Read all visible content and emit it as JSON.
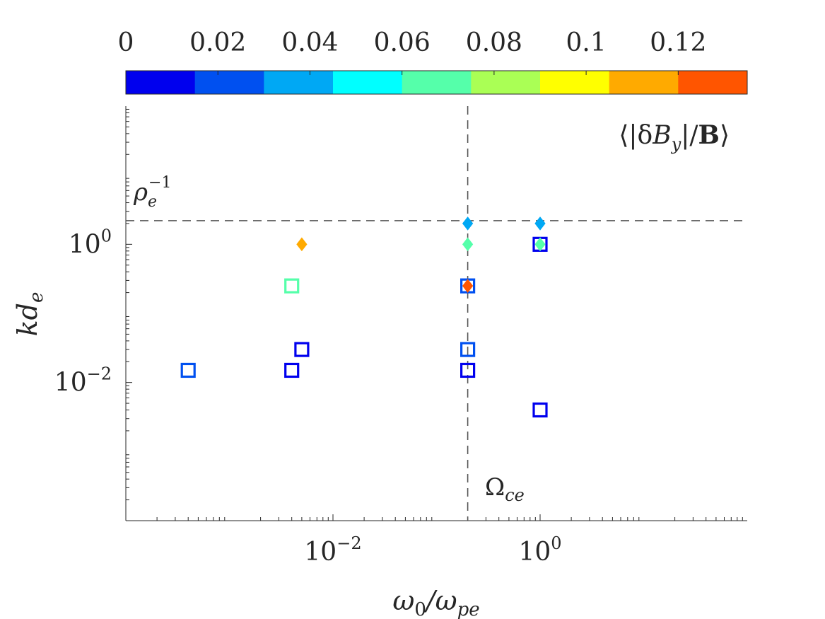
{
  "chart_data": {
    "type": "scatter",
    "title": "",
    "xlabel": {
      "main": "ω",
      "sub1": "0",
      "slash": "/ω",
      "sub2": "pe"
    },
    "ylabel": {
      "main": "kd",
      "sub": "e"
    },
    "xscale": "log",
    "yscale": "log",
    "xlim": [
      0.0001,
      100
    ],
    "ylim": [
      0.0001,
      100
    ],
    "x_ticks": [
      {
        "value": 0.01,
        "base": "10",
        "exp": "−2"
      },
      {
        "value": 1,
        "base": "10",
        "exp": "0"
      }
    ],
    "y_ticks": [
      {
        "value": 0.01,
        "base": "10",
        "exp": "−2"
      },
      {
        "value": 1,
        "base": "10",
        "exp": "0"
      }
    ],
    "reference_lines": [
      {
        "orientation": "vertical",
        "x": 0.2,
        "label_main": "Ω",
        "label_sub": "ce"
      },
      {
        "orientation": "horizontal",
        "y": 2.2,
        "label_main": "ρ",
        "label_sub": "e",
        "label_sup": "−1"
      }
    ],
    "colorbar": {
      "position": "top",
      "label": {
        "open": "⟨|δ",
        "B": "B",
        "sub": "y",
        "mid": "|/",
        "bold": "B",
        "close": "⟩"
      },
      "range": [
        0,
        0.135
      ],
      "tick_values": [
        0,
        0.02,
        0.04,
        0.06,
        0.08,
        0.1,
        0.12
      ],
      "tick_labels": [
        "0",
        "0.02",
        "0.04",
        "0.06",
        "0.08",
        "0.1",
        "0.12"
      ],
      "colors": [
        "#0000ee",
        "#0050f0",
        "#00a8f4",
        "#00ffff",
        "#55ffaa",
        "#aaff55",
        "#ffff00",
        "#ffaa00",
        "#ff5500"
      ]
    },
    "series": [
      {
        "name": "open squares",
        "marker": "square-open",
        "points": [
          {
            "x": 0.0004,
            "y": 0.015,
            "value": 0.025
          },
          {
            "x": 0.004,
            "y": 0.015,
            "value": 0.005
          },
          {
            "x": 0.005,
            "y": 0.03,
            "value": 0.01
          },
          {
            "x": 0.004,
            "y": 0.25,
            "value": 0.065
          },
          {
            "x": 0.2,
            "y": 0.015,
            "value": 0.01
          },
          {
            "x": 0.2,
            "y": 0.03,
            "value": 0.025
          },
          {
            "x": 0.2,
            "y": 0.25,
            "value": 0.025
          },
          {
            "x": 1,
            "y": 1,
            "value": 0.01
          },
          {
            "x": 1,
            "y": 0.004,
            "value": 0.005
          }
        ]
      },
      {
        "name": "filled diamonds",
        "marker": "diamond-filled",
        "points": [
          {
            "x": 0.005,
            "y": 1,
            "value": 0.11
          },
          {
            "x": 0.2,
            "y": 1,
            "value": 0.065
          },
          {
            "x": 0.2,
            "y": 0.25,
            "value": 0.13
          },
          {
            "x": 0.2,
            "y": 2,
            "value": 0.035
          },
          {
            "x": 1,
            "y": 2,
            "value": 0.035
          },
          {
            "x": 1,
            "y": 1,
            "value": 0.065
          }
        ]
      }
    ]
  }
}
